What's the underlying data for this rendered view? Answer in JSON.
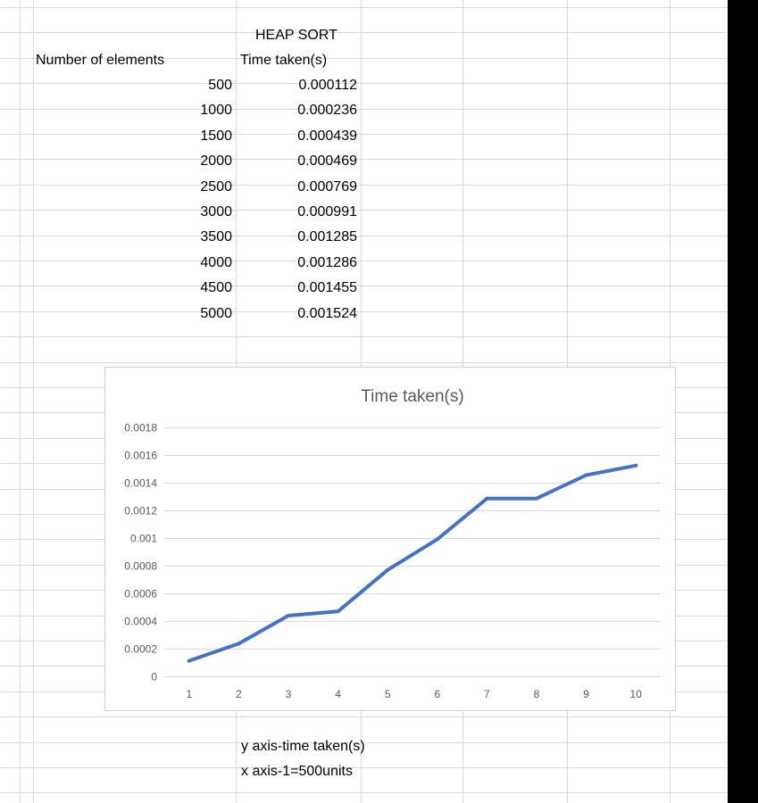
{
  "table": {
    "title": "HEAP SORT",
    "col1_header": "Number of elements",
    "col2_header": "Time taken(s)",
    "rows": [
      {
        "n": "500",
        "t": "0.000112"
      },
      {
        "n": "1000",
        "t": "0.000236"
      },
      {
        "n": "1500",
        "t": "0.000439"
      },
      {
        "n": "2000",
        "t": "0.000469"
      },
      {
        "n": "2500",
        "t": "0.000769"
      },
      {
        "n": "3000",
        "t": "0.000991"
      },
      {
        "n": "3500",
        "t": "0.001285"
      },
      {
        "n": "4000",
        "t": "0.001286"
      },
      {
        "n": "4500",
        "t": "0.001455"
      },
      {
        "n": "5000",
        "t": "0.001524"
      }
    ]
  },
  "notes": {
    "y_axis": "y axis-time taken(s)",
    "x_axis": "x axis-1=500units"
  },
  "chart_data": {
    "type": "line",
    "title": "Time taken(s)",
    "x": [
      1,
      2,
      3,
      4,
      5,
      6,
      7,
      8,
      9,
      10
    ],
    "series": [
      {
        "name": "Time taken(s)",
        "values": [
          0.000112,
          0.000236,
          0.000439,
          0.000469,
          0.000769,
          0.000991,
          0.001285,
          0.001286,
          0.001455,
          0.001524
        ]
      }
    ],
    "ylim": [
      0,
      0.0018
    ],
    "yticks": [
      0,
      0.0002,
      0.0004,
      0.0006,
      0.0008,
      0.001,
      0.0012,
      0.0014,
      0.0016,
      0.0018
    ],
    "ytick_labels": [
      "0",
      "0.0002",
      "0.0004",
      "0.0006",
      "0.0008",
      "0.001",
      "0.0012",
      "0.0014",
      "0.0016",
      "0.0018"
    ],
    "xtick_labels": [
      "1",
      "2",
      "3",
      "4",
      "5",
      "6",
      "7",
      "8",
      "9",
      "10"
    ],
    "xlabel": "",
    "ylabel": "",
    "grid": true,
    "legend": "none",
    "line_color": "#4472C4"
  }
}
